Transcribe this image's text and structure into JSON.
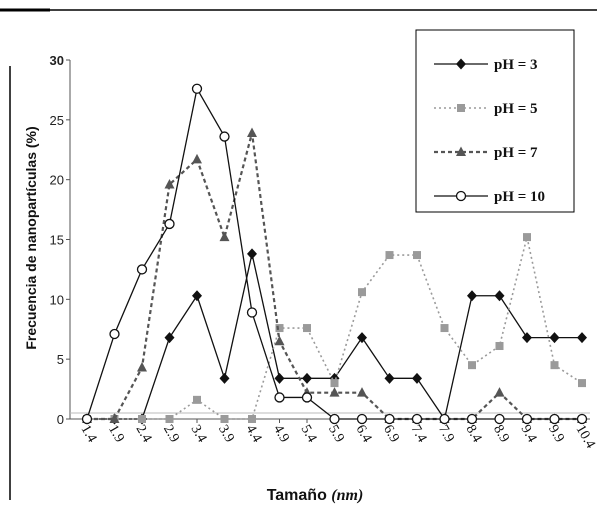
{
  "chart_data": {
    "type": "line",
    "xlabel_main": "Tamaño",
    "xlabel_unit": "(nm)",
    "ylabel": "Frecuencia de nanopartículas (%)",
    "ylim": [
      0,
      30
    ],
    "yticks": [
      "0",
      "5",
      "10",
      "15",
      "20",
      "25",
      "30"
    ],
    "categories": [
      "1.4",
      "1.9",
      "2.4",
      "2.9",
      "3.4",
      "3.9",
      "4.4",
      "4.9",
      "5.4",
      "5.9",
      "6.4",
      "6.9",
      "7.4",
      "7.9",
      "8.4",
      "8.9",
      "9.4",
      "9.9",
      "10.4"
    ],
    "legend_position": "top-right",
    "series": [
      {
        "name": "pH = 3",
        "marker": "diamond",
        "color": "#111111",
        "line": "solid",
        "values": [
          0,
          0,
          0,
          6.8,
          10.3,
          3.4,
          13.8,
          3.4,
          3.4,
          3.4,
          6.8,
          3.4,
          3.4,
          0,
          10.3,
          10.3,
          6.8,
          6.8,
          6.8
        ]
      },
      {
        "name": "pH = 5",
        "marker": "square",
        "color": "#9a9a9a",
        "line": "dotted",
        "values": [
          0,
          0,
          0,
          0,
          1.6,
          0,
          0,
          7.6,
          7.6,
          3.0,
          10.6,
          13.7,
          13.7,
          7.6,
          4.5,
          6.1,
          15.2,
          4.5,
          3.0
        ]
      },
      {
        "name": "pH = 7",
        "marker": "triangle",
        "color": "#555555",
        "line": "dashed",
        "values": [
          0,
          0,
          4.3,
          19.6,
          21.7,
          15.2,
          23.9,
          6.5,
          2.2,
          2.2,
          2.2,
          0,
          0,
          0,
          0,
          2.2,
          0,
          0,
          0
        ]
      },
      {
        "name": "pH = 10",
        "marker": "circle",
        "color": "#111111",
        "line": "solid",
        "values": [
          0,
          7.1,
          12.5,
          16.3,
          27.6,
          23.6,
          8.9,
          1.8,
          1.8,
          0,
          0,
          0,
          0,
          0,
          0,
          0,
          0,
          0,
          0
        ]
      }
    ]
  }
}
